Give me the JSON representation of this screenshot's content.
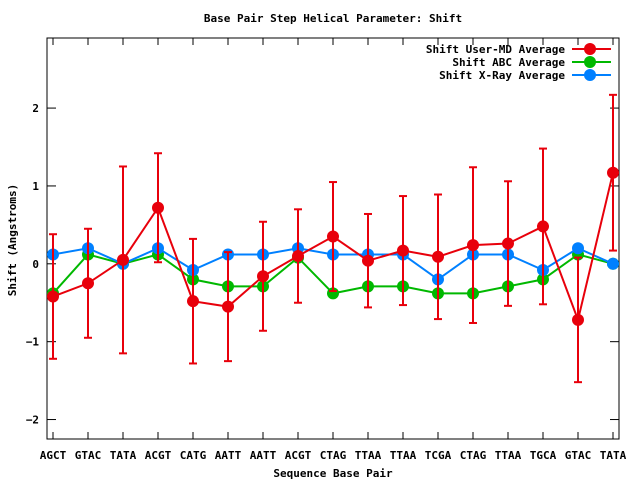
{
  "chart_data": {
    "type": "line",
    "title": "Base Pair Step Helical Parameter: Shift",
    "xlabel": "Sequence Base Pair",
    "ylabel": "Shift (Angstroms)",
    "ylim": [
      -2.25,
      2.9
    ],
    "yticks": [
      -2,
      -1,
      0,
      1,
      2
    ],
    "grid": false,
    "legend_position": "top-right",
    "categories": [
      "AGCT",
      "GTAC",
      "TATA",
      "ACGT",
      "CATG",
      "AATT",
      "AATT",
      "ACGT",
      "CTAG",
      "TTAA",
      "TTAA",
      "TCGA",
      "CTAG",
      "TTAA",
      "TGCA",
      "GTAC",
      "TATA"
    ],
    "series": [
      {
        "name": "Shift User-MD Average",
        "color": "#e8000b",
        "values": [
          -0.42,
          -0.25,
          0.05,
          0.72,
          -0.48,
          -0.55,
          -0.16,
          0.1,
          0.35,
          0.04,
          0.17,
          0.09,
          0.24,
          0.26,
          0.48,
          -0.72,
          1.17
        ],
        "errors": [
          0.8,
          0.7,
          1.2,
          0.7,
          0.8,
          0.7,
          0.7,
          0.6,
          0.7,
          0.6,
          0.7,
          0.8,
          1.0,
          0.8,
          1.0,
          0.8,
          1.0
        ]
      },
      {
        "name": "Shift ABC Average",
        "color": "#00b800",
        "values": [
          -0.38,
          0.12,
          0.0,
          0.12,
          -0.2,
          -0.29,
          -0.29,
          0.08,
          -0.38,
          -0.29,
          -0.29,
          -0.38,
          -0.38,
          -0.29,
          -0.2,
          0.12,
          0.0
        ]
      },
      {
        "name": "Shift X-Ray Average",
        "color": "#0080ff",
        "values": [
          0.12,
          0.2,
          0.0,
          0.2,
          -0.08,
          0.12,
          0.12,
          0.2,
          0.12,
          0.12,
          0.12,
          -0.2,
          0.12,
          0.12,
          -0.08,
          0.2,
          0.0
        ]
      }
    ]
  }
}
